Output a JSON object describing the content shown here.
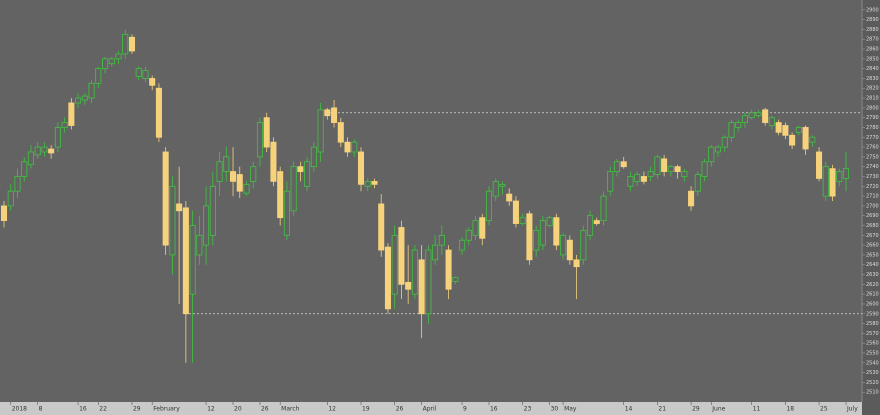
{
  "chart_data": {
    "type": "candlestick",
    "categories": [
      null,
      "2018",
      null,
      null,
      null,
      "8",
      null,
      null,
      null,
      null,
      null,
      "16",
      null,
      null,
      "22",
      null,
      null,
      null,
      null,
      "29",
      null,
      null,
      "February",
      null,
      null,
      null,
      null,
      null,
      null,
      null,
      "12",
      null,
      null,
      null,
      "20",
      null,
      null,
      null,
      "26",
      null,
      null,
      "March",
      null,
      null,
      null,
      null,
      null,
      null,
      "12",
      null,
      null,
      null,
      null,
      "19",
      null,
      null,
      null,
      null,
      "26",
      null,
      null,
      null,
      "April",
      null,
      null,
      null,
      null,
      null,
      "9",
      null,
      null,
      null,
      "16",
      null,
      null,
      null,
      null,
      "23",
      null,
      null,
      null,
      "30",
      null,
      "May",
      null,
      null,
      null,
      null,
      null,
      null,
      null,
      null,
      "14",
      null,
      null,
      null,
      null,
      "21",
      null,
      null,
      null,
      null,
      "29",
      null,
      null,
      "June",
      null,
      null,
      null,
      null,
      null,
      "11",
      null,
      null,
      null,
      null,
      "18",
      null,
      null,
      null,
      null,
      "25",
      null,
      null,
      null,
      "July"
    ],
    "open": [
      2700,
      2700,
      2715,
      2730,
      2742,
      2752,
      2755,
      2758,
      2760,
      2780,
      2805,
      2805,
      2808,
      2810,
      2825,
      2840,
      2845,
      2850,
      2855,
      2872,
      2832,
      2830,
      2830,
      2820,
      2755,
      2650,
      2702,
      2698,
      2610,
      2650,
      2660,
      2670,
      2725,
      2735,
      2735,
      2732,
      2713,
      2725,
      2750,
      2790,
      2765,
      2735,
      2670,
      2695,
      2740,
      2720,
      2740,
      2755,
      2798,
      2800,
      2785,
      2765,
      2755,
      2755,
      2720,
      2725,
      2702,
      2658,
      2610,
      2678,
      2622,
      2610,
      2645,
      2590,
      2645,
      2660,
      2655,
      2623,
      2655,
      2665,
      2670,
      2688,
      2685,
      2710,
      2720,
      2712,
      2705,
      2682,
      2692,
      2655,
      2660,
      2680,
      2688,
      2650,
      2665,
      2645,
      2645,
      2670,
      2685,
      2685,
      2715,
      2735,
      2745,
      2720,
      2725,
      2730,
      2730,
      2732,
      2748,
      2735,
      2740,
      2730,
      2715,
      2715,
      2730,
      2745,
      2755,
      2760,
      2770,
      2780,
      2785,
      2790,
      2792,
      2798,
      2782,
      2785,
      2782,
      2772,
      2775,
      2780,
      2765,
      2755,
      2710,
      2738,
      2725,
      2728
    ],
    "high": [
      2705,
      2722,
      2738,
      2750,
      2762,
      2765,
      2765,
      2762,
      2785,
      2790,
      2810,
      2815,
      2815,
      2828,
      2842,
      2852,
      2852,
      2858,
      2880,
      2875,
      2842,
      2842,
      2833,
      2825,
      2760,
      2730,
      2740,
      2705,
      2695,
      2690,
      2720,
      2735,
      2755,
      2760,
      2760,
      2740,
      2725,
      2745,
      2790,
      2795,
      2770,
      2740,
      2725,
      2745,
      2745,
      2750,
      2765,
      2805,
      2800,
      2808,
      2790,
      2770,
      2768,
      2760,
      2728,
      2728,
      2712,
      2662,
      2680,
      2685,
      2660,
      2660,
      2660,
      2660,
      2670,
      2680,
      2660,
      2628,
      2668,
      2678,
      2690,
      2692,
      2720,
      2728,
      2725,
      2718,
      2710,
      2692,
      2695,
      2680,
      2690,
      2690,
      2692,
      2672,
      2670,
      2650,
      2680,
      2695,
      2688,
      2715,
      2740,
      2748,
      2750,
      2735,
      2735,
      2735,
      2740,
      2752,
      2752,
      2742,
      2742,
      2738,
      2720,
      2735,
      2748,
      2762,
      2762,
      2772,
      2788,
      2788,
      2795,
      2798,
      2798,
      2800,
      2792,
      2788,
      2785,
      2775,
      2782,
      2782,
      2772,
      2760,
      2745,
      2742,
      2738,
      2755
    ],
    "low": [
      2678,
      2695,
      2708,
      2725,
      2738,
      2748,
      2750,
      2748,
      2755,
      2775,
      2778,
      2800,
      2803,
      2805,
      2820,
      2835,
      2842,
      2845,
      2850,
      2855,
      2828,
      2826,
      2818,
      2765,
      2650,
      2630,
      2600,
      2540,
      2540,
      2640,
      2640,
      2660,
      2710,
      2725,
      2710,
      2708,
      2710,
      2718,
      2740,
      2755,
      2720,
      2680,
      2665,
      2690,
      2725,
      2715,
      2735,
      2745,
      2788,
      2780,
      2760,
      2750,
      2750,
      2715,
      2715,
      2718,
      2648,
      2590,
      2595,
      2605,
      2600,
      2605,
      2565,
      2580,
      2640,
      2650,
      2605,
      2620,
      2650,
      2660,
      2665,
      2660,
      2680,
      2705,
      2712,
      2700,
      2678,
      2680,
      2640,
      2648,
      2655,
      2678,
      2655,
      2645,
      2640,
      2605,
      2640,
      2665,
      2680,
      2680,
      2710,
      2730,
      2738,
      2715,
      2720,
      2722,
      2725,
      2728,
      2730,
      2730,
      2728,
      2725,
      2695,
      2710,
      2725,
      2740,
      2750,
      2755,
      2765,
      2776,
      2780,
      2788,
      2790,
      2782,
      2778,
      2772,
      2768,
      2758,
      2772,
      2752,
      2760,
      2725,
      2705,
      2705,
      2720,
      2715
    ],
    "close": [
      2685,
      2715,
      2730,
      2745,
      2755,
      2760,
      2760,
      2754,
      2780,
      2785,
      2782,
      2810,
      2812,
      2825,
      2840,
      2850,
      2850,
      2855,
      2875,
      2858,
      2840,
      2838,
      2823,
      2770,
      2660,
      2720,
      2695,
      2590,
      2680,
      2670,
      2700,
      2720,
      2745,
      2750,
      2725,
      2715,
      2722,
      2740,
      2785,
      2760,
      2725,
      2688,
      2715,
      2740,
      2735,
      2745,
      2760,
      2798,
      2792,
      2785,
      2765,
      2755,
      2765,
      2722,
      2725,
      2722,
      2655,
      2595,
      2670,
      2620,
      2615,
      2655,
      2590,
      2655,
      2660,
      2670,
      2615,
      2627,
      2665,
      2675,
      2685,
      2667,
      2715,
      2725,
      2722,
      2705,
      2682,
      2688,
      2645,
      2675,
      2685,
      2688,
      2660,
      2670,
      2645,
      2638,
      2675,
      2690,
      2682,
      2710,
      2735,
      2745,
      2740,
      2730,
      2732,
      2725,
      2735,
      2750,
      2735,
      2740,
      2735,
      2735,
      2700,
      2732,
      2745,
      2760,
      2760,
      2770,
      2785,
      2785,
      2792,
      2795,
      2795,
      2785,
      2790,
      2775,
      2772,
      2762,
      2780,
      2758,
      2770,
      2728,
      2740,
      2710,
      2735,
      2738
    ],
    "up_color": "#3fc43f",
    "down_color": "#f7d27c",
    "levels": [
      2795,
      2590
    ],
    "ylim": [
      2500,
      2910
    ],
    "yticks": [
      2510,
      2520,
      2530,
      2540,
      2550,
      2560,
      2570,
      2580,
      2590,
      2600,
      2610,
      2620,
      2630,
      2640,
      2650,
      2660,
      2670,
      2680,
      2690,
      2700,
      2710,
      2720,
      2730,
      2740,
      2750,
      2760,
      2770,
      2780,
      2790,
      2800,
      2810,
      2820,
      2830,
      2840,
      2850,
      2860,
      2870,
      2880,
      2890,
      2900
    ]
  }
}
